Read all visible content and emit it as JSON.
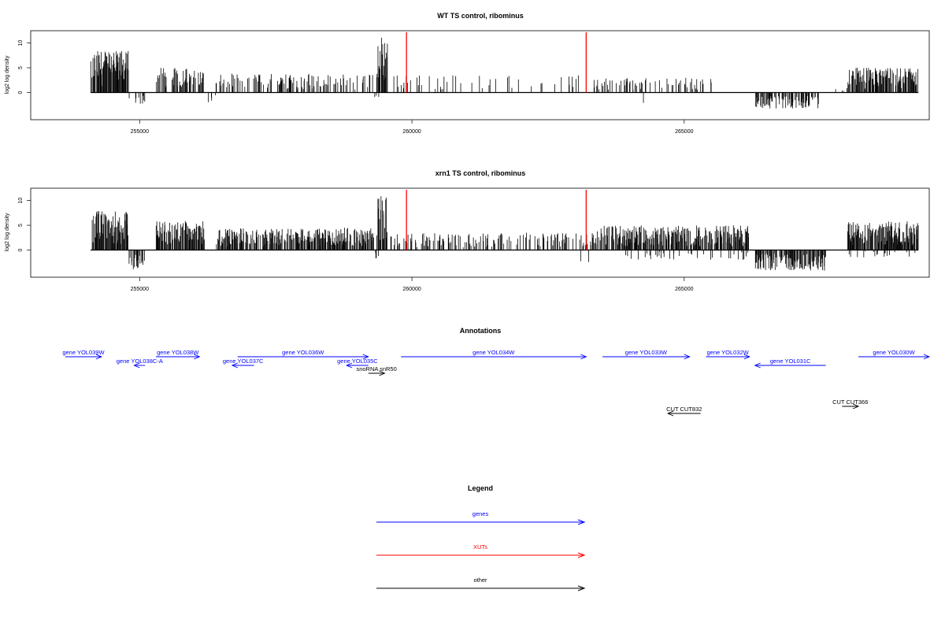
{
  "chart_data": [
    {
      "type": "bar",
      "title": "WT TS control, ribominus",
      "ylabel": "log2 log density",
      "xlim": [
        253000,
        269500
      ],
      "ylim": [
        -5,
        12
      ],
      "x_ticks": [
        255000,
        260000,
        265000
      ],
      "x_tick_labels": [
        "255000",
        "260000",
        "265000"
      ],
      "y_ticks": [
        0,
        5,
        10
      ],
      "y_tick_labels": [
        "0",
        "5",
        "10"
      ],
      "vlines": [
        {
          "x": 259900,
          "color": "#ff0000"
        },
        {
          "x": 263200,
          "color": "#ff0000"
        }
      ],
      "regions": [
        {
          "x_start": 254100,
          "x_end": 254800,
          "max": 8.5,
          "density": 0.85,
          "sign": 1
        },
        {
          "x_start": 254800,
          "x_end": 255100,
          "max": 2.5,
          "density": 0.3,
          "sign": -1
        },
        {
          "x_start": 255300,
          "x_end": 256200,
          "max": 5.0,
          "density": 0.55,
          "sign": 1
        },
        {
          "x_start": 256200,
          "x_end": 256400,
          "max": 3.0,
          "density": 0.05,
          "sign": -1
        },
        {
          "x_start": 256400,
          "x_end": 259300,
          "max": 3.8,
          "density": 0.35,
          "sign": 1
        },
        {
          "x_start": 259300,
          "x_end": 259400,
          "max": 1.5,
          "density": 0.2,
          "sign": -1
        },
        {
          "x_start": 259350,
          "x_end": 259550,
          "max": 11.5,
          "density": 0.9,
          "sign": 1
        },
        {
          "x_start": 259600,
          "x_end": 263300,
          "max": 3.5,
          "density": 0.1,
          "sign": 1
        },
        {
          "x_start": 263300,
          "x_end": 265500,
          "max": 3.0,
          "density": 0.25,
          "sign": 1
        },
        {
          "x_start": 264200,
          "x_end": 264400,
          "max": 2.5,
          "density": 0.05,
          "sign": -1
        },
        {
          "x_start": 266300,
          "x_end": 267500,
          "max": 3.2,
          "density": 0.6,
          "sign": -1
        },
        {
          "x_start": 267600,
          "x_end": 268000,
          "max": 1.0,
          "density": 0.05,
          "sign": 1
        },
        {
          "x_start": 268000,
          "x_end": 269300,
          "max": 5.0,
          "density": 0.8,
          "sign": 1
        }
      ]
    },
    {
      "type": "bar",
      "title": "xrn1 TS control, ribominus",
      "ylabel": "log2 log density",
      "xlim": [
        253000,
        269500
      ],
      "ylim": [
        -5,
        12
      ],
      "x_ticks": [
        255000,
        260000,
        265000
      ],
      "x_tick_labels": [
        "255000",
        "260000",
        "265000"
      ],
      "y_ticks": [
        0,
        5,
        10
      ],
      "y_tick_labels": [
        "0",
        "5",
        "10"
      ],
      "vlines": [
        {
          "x": 259900,
          "color": "#ff0000"
        },
        {
          "x": 263200,
          "color": "#ff0000"
        }
      ],
      "regions": [
        {
          "x_start": 254100,
          "x_end": 254800,
          "max": 8.0,
          "density": 0.85,
          "sign": 1
        },
        {
          "x_start": 254800,
          "x_end": 255100,
          "max": 4.2,
          "density": 0.55,
          "sign": -1
        },
        {
          "x_start": 255300,
          "x_end": 256200,
          "max": 6.0,
          "density": 0.85,
          "sign": 1
        },
        {
          "x_start": 256400,
          "x_end": 259300,
          "max": 4.5,
          "density": 0.7,
          "sign": 1
        },
        {
          "x_start": 259300,
          "x_end": 259400,
          "max": 2.0,
          "density": 0.3,
          "sign": -1
        },
        {
          "x_start": 259350,
          "x_end": 259550,
          "max": 11.5,
          "density": 0.9,
          "sign": 1
        },
        {
          "x_start": 259600,
          "x_end": 263300,
          "max": 3.5,
          "density": 0.3,
          "sign": 1
        },
        {
          "x_start": 263000,
          "x_end": 263300,
          "max": 2.5,
          "density": 0.05,
          "sign": -1
        },
        {
          "x_start": 263300,
          "x_end": 266200,
          "max": 5.0,
          "density": 0.7,
          "sign": 1
        },
        {
          "x_start": 263900,
          "x_end": 266200,
          "max": 2.0,
          "density": 0.2,
          "sign": -1
        },
        {
          "x_start": 266300,
          "x_end": 267600,
          "max": 4.2,
          "density": 0.75,
          "sign": -1
        },
        {
          "x_start": 268000,
          "x_end": 269300,
          "max": 5.8,
          "density": 0.85,
          "sign": 1
        },
        {
          "x_start": 268000,
          "x_end": 269300,
          "max": 1.5,
          "density": 0.1,
          "sign": -1
        }
      ]
    }
  ],
  "annotations": {
    "title": "Annotations",
    "features": [
      {
        "label": "gene YOL039W",
        "x_start": 253600,
        "x_end": 254300,
        "strand": "+",
        "color": "#0000ff"
      },
      {
        "label": "gene YOL038C-A",
        "x_start": 254900,
        "x_end": 255100,
        "strand": "-",
        "color": "#0000ff"
      },
      {
        "label": "gene YOL038W",
        "x_start": 255300,
        "x_end": 256100,
        "strand": "+",
        "color": "#0000ff"
      },
      {
        "label": "gene YOL037C",
        "x_start": 256700,
        "x_end": 257100,
        "strand": "-",
        "color": "#0000ff"
      },
      {
        "label": "gene YOL036W",
        "x_start": 256800,
        "x_end": 259200,
        "strand": "+",
        "color": "#0000ff"
      },
      {
        "label": "gene YOL035C",
        "x_start": 258800,
        "x_end": 259200,
        "strand": "-",
        "color": "#0000ff"
      },
      {
        "label": "snoRNA snR50",
        "x_start": 259200,
        "x_end": 259500,
        "strand": "+",
        "color": "#000000"
      },
      {
        "label": "gene YOL034W",
        "x_start": 259800,
        "x_end": 263200,
        "strand": "+",
        "color": "#0000ff"
      },
      {
        "label": "gene YOL033W",
        "x_start": 263500,
        "x_end": 265100,
        "strand": "+",
        "color": "#0000ff"
      },
      {
        "label": "gene YOL032W",
        "x_start": 265400,
        "x_end": 266200,
        "strand": "+",
        "color": "#0000ff"
      },
      {
        "label": "gene YOL031C",
        "x_start": 266300,
        "x_end": 267600,
        "strand": "-",
        "color": "#0000ff"
      },
      {
        "label": "gene YOL030W",
        "x_start": 268200,
        "x_end": 269500,
        "strand": "+",
        "color": "#0000ff"
      },
      {
        "label": "CUT CUT832",
        "x_start": 264700,
        "x_end": 265300,
        "strand": "-",
        "color": "#000000"
      },
      {
        "label": "CUT CUT366",
        "x_start": 267900,
        "x_end": 268200,
        "strand": "+",
        "color": "#000000"
      }
    ]
  },
  "legend": {
    "title": "Legend",
    "items": [
      {
        "label": "genes",
        "color": "#0000ff"
      },
      {
        "label": "XUTs",
        "color": "#ff0000"
      },
      {
        "label": "other",
        "color": "#000000"
      }
    ]
  }
}
